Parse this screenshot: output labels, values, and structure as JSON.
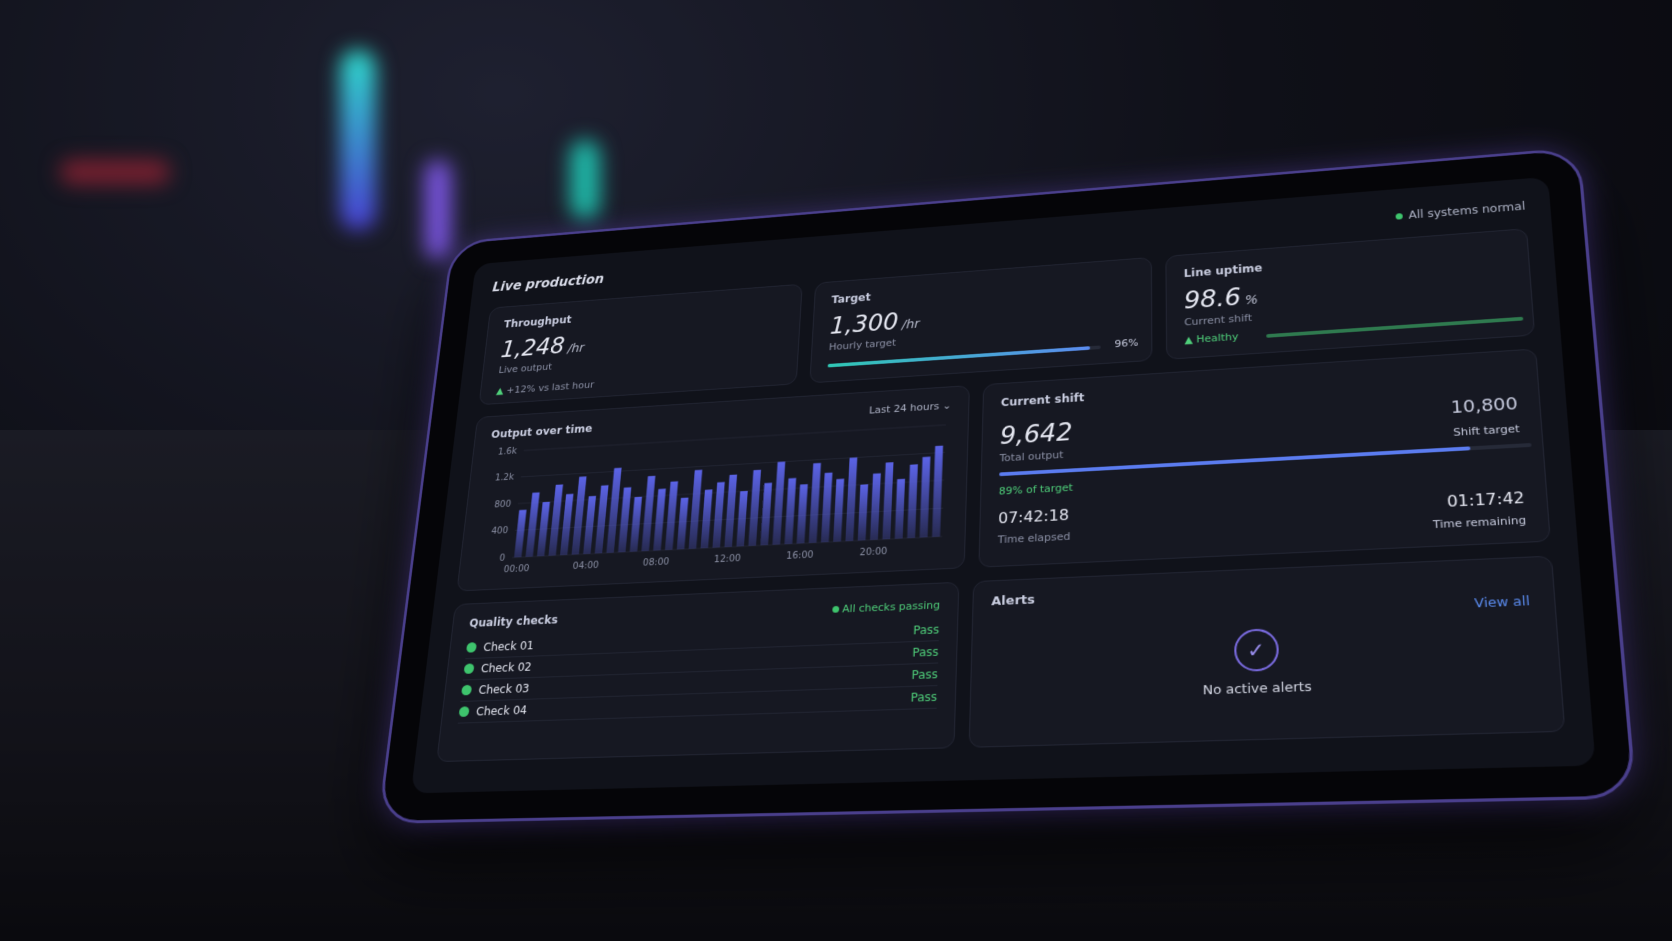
{
  "header": {
    "title": "Live production",
    "status": "All systems normal"
  },
  "kpis": [
    {
      "label": "Throughput",
      "value": "1,248",
      "unit": "/hr",
      "caption": "Live output",
      "delta": "+12% vs last hour"
    },
    {
      "label": "Target",
      "value": "1,300",
      "unit": "/hr",
      "caption": "Hourly target",
      "progress": 96,
      "progress_label": "96%"
    },
    {
      "label": "Line uptime",
      "value": "98.6",
      "unit": "%",
      "caption": "Current shift",
      "state": "Healthy"
    }
  ],
  "chart_data": {
    "type": "bar",
    "title": "Output over time",
    "range_selector": "Last 24 hours",
    "color": "#5b63e6",
    "categories": [
      "00:00",
      null,
      null,
      null,
      null,
      null,
      "04:00",
      null,
      null,
      null,
      null,
      null,
      "08:00",
      null,
      null,
      null,
      null,
      null,
      "12:00",
      null,
      null,
      null,
      null,
      null,
      "16:00",
      null,
      null,
      null,
      null,
      null,
      "20:00",
      null,
      null,
      null,
      null,
      null
    ],
    "values": [
      700,
      950,
      800,
      1050,
      900,
      1150,
      850,
      1000,
      1250,
      950,
      800,
      1100,
      900,
      1000,
      750,
      1150,
      850,
      950,
      1050,
      800,
      1100,
      900,
      1200,
      950,
      850,
      1150,
      1000,
      900,
      1200,
      800,
      950,
      1100,
      850,
      1050,
      1150,
      1300
    ],
    "ylim": [
      0,
      1600
    ],
    "yticks": [
      0,
      400,
      800,
      {
        "value": 1200,
        "label": "1.2k"
      },
      {
        "value": 1600,
        "label": "1.6k"
      }
    ]
  },
  "shift": {
    "title": "Current shift",
    "total": "9,642",
    "total_label": "Total output",
    "target": "10,800",
    "target_label": "Shift target",
    "progress": 89,
    "progress_label": "89% of target",
    "elapsed": "07:42:18",
    "elapsed_label": "Time elapsed",
    "remaining": "01:17:42",
    "remaining_label": "Time remaining"
  },
  "quality": {
    "title": "Quality checks",
    "status": "All checks passing",
    "checks": [
      {
        "name": "Check 01",
        "status": "Pass"
      },
      {
        "name": "Check 02",
        "status": "Pass"
      },
      {
        "name": "Check 03",
        "status": "Pass"
      },
      {
        "name": "Check 04",
        "status": "Pass"
      }
    ]
  },
  "alerts": {
    "title": "Alerts",
    "action": "View all",
    "empty": "No active alerts"
  }
}
